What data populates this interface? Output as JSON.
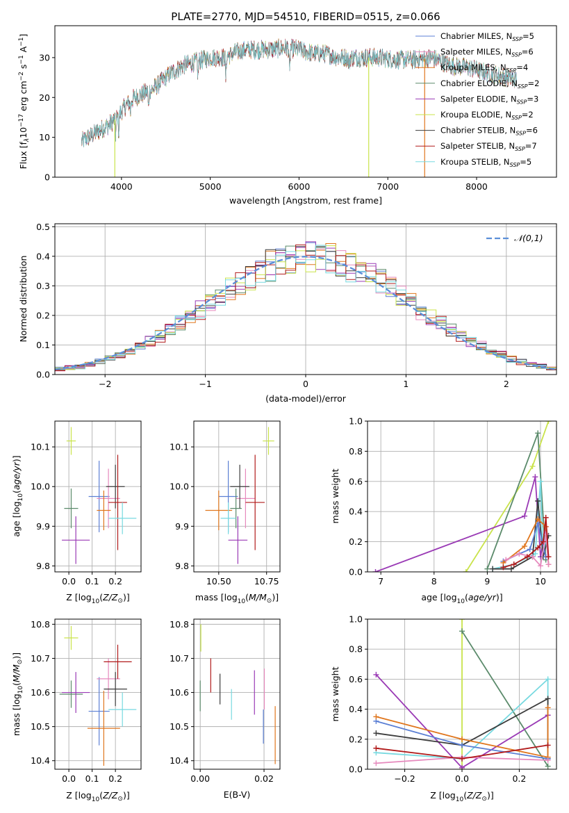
{
  "title": "PLATE=2770, MJD=54510, FIBERID=0515, z=0.066",
  "colors": {
    "Chabrier MILES": "#5b7fd4",
    "Salpeter MILES": "#e689bd",
    "Kroupa MILES": "#e0761d",
    "Chabrier ELODIE": "#5a8a6a",
    "Salpeter ELODIE": "#9a3ab5",
    "Kroupa ELODIE": "#c9e34a",
    "Chabrier STELIB": "#3c3c3c",
    "Salpeter STELIB": "#b11a1a",
    "Kroupa STELIB": "#77d9e0",
    "normal": "#5b8fd8",
    "grid": "#b0b0b0"
  },
  "chart_data": [
    {
      "id": "spectrum",
      "type": "line",
      "title": "PLATE=2770, MJD=54510, FIBERID=0515, z=0.066",
      "xlabel": "wavelength [Angstrom, rest frame]",
      "ylabel": "Flux [f_λ 10^-17 erg cm^-2 s^-1 A^-1]",
      "xlim": [
        3250,
        8900
      ],
      "ylim": [
        0,
        38
      ],
      "xticks": [
        4000,
        5000,
        6000,
        7000,
        8000
      ],
      "yticks": [
        0,
        10,
        20,
        30
      ],
      "grid": false,
      "legend": "top-right",
      "legend_entries": [
        {
          "model": "Chabrier MILES",
          "n": 5
        },
        {
          "model": "Salpeter MILES",
          "n": 6
        },
        {
          "model": "Kroupa MILES",
          "n": 4
        },
        {
          "model": "Chabrier ELODIE",
          "n": 2
        },
        {
          "model": "Salpeter ELODIE",
          "n": 3
        },
        {
          "model": "Kroupa ELODIE",
          "n": 2
        },
        {
          "model": "Chabrier STELIB",
          "n": 6
        },
        {
          "model": "Salpeter STELIB",
          "n": 7
        },
        {
          "model": "Kroupa STELIB",
          "n": 5
        }
      ],
      "continuum": [
        [
          3550,
          9
        ],
        [
          3700,
          11
        ],
        [
          3850,
          13
        ],
        [
          3950,
          15
        ],
        [
          4050,
          18
        ],
        [
          4150,
          20
        ],
        [
          4250,
          21
        ],
        [
          4350,
          22
        ],
        [
          4450,
          24
        ],
        [
          4550,
          26
        ],
        [
          4700,
          28
        ],
        [
          4850,
          29
        ],
        [
          5000,
          30
        ],
        [
          5150,
          30
        ],
        [
          5250,
          31
        ],
        [
          5400,
          32
        ],
        [
          5550,
          32
        ],
        [
          5700,
          32
        ],
        [
          5850,
          32.5
        ],
        [
          6000,
          32
        ],
        [
          6150,
          31
        ],
        [
          6300,
          31
        ],
        [
          6450,
          30
        ],
        [
          6600,
          30
        ],
        [
          6750,
          30
        ],
        [
          6900,
          30
        ],
        [
          7100,
          29.5
        ],
        [
          7300,
          29.5
        ],
        [
          7500,
          30
        ],
        [
          7700,
          28
        ],
        [
          7900,
          27.5
        ],
        [
          8150,
          26
        ],
        [
          8350,
          25
        ],
        [
          8450,
          24.5
        ]
      ],
      "absorption_dips": [
        [
          3934,
          4
        ],
        [
          3969,
          5
        ],
        [
          4101,
          3
        ],
        [
          4304,
          5
        ],
        [
          4861,
          4
        ],
        [
          5175,
          6
        ],
        [
          5894,
          7
        ],
        [
          6563,
          3
        ]
      ],
      "spikes": [
        {
          "x": 3925,
          "to": 0
        },
        {
          "x": 6785,
          "to": 0
        },
        {
          "x": 7415,
          "to": 0
        }
      ]
    },
    {
      "id": "residuals",
      "type": "line",
      "xlabel": "(data-model)/error",
      "ylabel": "Normed distribution",
      "xlim": [
        -2.5,
        2.5
      ],
      "ylim": [
        0,
        0.51
      ],
      "xticks": [
        -2,
        -1,
        0,
        1,
        2
      ],
      "yticks": [
        0.0,
        0.1,
        0.2,
        0.3,
        0.4,
        0.5
      ],
      "grid": true,
      "legend": "top-right",
      "normal_label": "𝒩(0,1)",
      "bin_edges_start": -2.5,
      "bin_width": 0.1
    },
    {
      "id": "age-vs-Z",
      "type": "scatter",
      "xlabel": "Z [log10(Z/Z⊙)]",
      "ylabel": "age [log10(age/yr)]",
      "xlim": [
        -0.06,
        0.31
      ],
      "ylim": [
        9.785,
        10.165
      ],
      "xticks": [
        0.0,
        0.1,
        0.2
      ],
      "yticks": [
        9.8,
        9.9,
        10.0,
        10.1
      ],
      "grid": true,
      "points": [
        {
          "model": "Chabrier MILES",
          "x": 0.13,
          "xerr": 0.045,
          "y": 9.975,
          "yerr": 0.09
        },
        {
          "model": "Salpeter MILES",
          "x": 0.17,
          "xerr": 0.05,
          "y": 9.97,
          "yerr": 0.075
        },
        {
          "model": "Kroupa MILES",
          "x": 0.15,
          "xerr": 0.03,
          "y": 9.94,
          "yerr": 0.05
        },
        {
          "model": "Chabrier ELODIE",
          "x": 0.01,
          "xerr": 0.03,
          "y": 9.945,
          "yerr": 0.05
        },
        {
          "model": "Salpeter ELODIE",
          "x": 0.03,
          "xerr": 0.06,
          "y": 9.865,
          "yerr": 0.06
        },
        {
          "model": "Kroupa ELODIE",
          "x": 0.01,
          "xerr": 0.02,
          "y": 10.115,
          "yerr": 0.035
        },
        {
          "model": "Chabrier STELIB",
          "x": 0.2,
          "xerr": 0.04,
          "y": 10.0,
          "yerr": 0.055
        },
        {
          "model": "Salpeter STELIB",
          "x": 0.21,
          "xerr": 0.04,
          "y": 9.96,
          "yerr": 0.12
        },
        {
          "model": "Kroupa STELIB",
          "x": 0.23,
          "xerr": 0.06,
          "y": 9.92,
          "yerr": 0.04
        }
      ]
    },
    {
      "id": "age-vs-mass",
      "type": "scatter",
      "xlabel": "mass [log10(M/M⊙)]",
      "xlim": [
        10.37,
        10.82
      ],
      "ylim": [
        9.785,
        10.165
      ],
      "xticks": [
        10.5,
        10.75
      ],
      "yticks": [
        9.8,
        9.9,
        10.0,
        10.1
      ],
      "grid": true,
      "points": [
        {
          "model": "Chabrier MILES",
          "x": 10.55,
          "xerr": 0.05,
          "y": 9.975,
          "yerr": 0.09
        },
        {
          "model": "Salpeter MILES",
          "x": 10.64,
          "xerr": 0.05,
          "y": 9.97,
          "yerr": 0.075
        },
        {
          "model": "Kroupa MILES",
          "x": 10.5,
          "xerr": 0.07,
          "y": 9.94,
          "yerr": 0.05
        },
        {
          "model": "Chabrier ELODIE",
          "x": 10.59,
          "xerr": 0.03,
          "y": 9.945,
          "yerr": 0.05
        },
        {
          "model": "Salpeter ELODIE",
          "x": 10.6,
          "xerr": 0.05,
          "y": 9.865,
          "yerr": 0.06
        },
        {
          "model": "Kroupa ELODIE",
          "x": 10.76,
          "xerr": 0.03,
          "y": 10.115,
          "yerr": 0.035
        },
        {
          "model": "Chabrier STELIB",
          "x": 10.61,
          "xerr": 0.05,
          "y": 10.0,
          "yerr": 0.055
        },
        {
          "model": "Salpeter STELIB",
          "x": 10.69,
          "xerr": 0.05,
          "y": 9.96,
          "yerr": 0.12
        },
        {
          "model": "Kroupa STELIB",
          "x": 10.55,
          "xerr": 0.04,
          "y": 9.92,
          "yerr": 0.04
        }
      ]
    },
    {
      "id": "mass-vs-Z",
      "type": "scatter",
      "xlabel": "Z [log10(Z/Z⊙)]",
      "ylabel": "mass [log10(M/M⊙)]",
      "xlim": [
        -0.06,
        0.31
      ],
      "ylim": [
        10.375,
        10.815
      ],
      "xticks": [
        0.0,
        0.1,
        0.2
      ],
      "yticks": [
        10.4,
        10.5,
        10.6,
        10.7,
        10.8
      ],
      "grid": true,
      "points": [
        {
          "model": "Chabrier MILES",
          "x": 0.13,
          "xerr": 0.045,
          "y": 10.545,
          "yerr": 0.1
        },
        {
          "model": "Salpeter MILES",
          "x": 0.17,
          "xerr": 0.05,
          "y": 10.64,
          "yerr": 0.06
        },
        {
          "model": "Kroupa MILES",
          "x": 0.15,
          "xerr": 0.07,
          "y": 10.495,
          "yerr": 0.11
        },
        {
          "model": "Chabrier ELODIE",
          "x": 0.01,
          "xerr": 0.05,
          "y": 10.595,
          "yerr": 0.04
        },
        {
          "model": "Salpeter ELODIE",
          "x": 0.03,
          "xerr": 0.06,
          "y": 10.6,
          "yerr": 0.06
        },
        {
          "model": "Kroupa ELODIE",
          "x": 0.01,
          "xerr": 0.03,
          "y": 10.76,
          "yerr": 0.035
        },
        {
          "model": "Chabrier STELIB",
          "x": 0.2,
          "xerr": 0.05,
          "y": 10.61,
          "yerr": 0.05
        },
        {
          "model": "Salpeter STELIB",
          "x": 0.21,
          "xerr": 0.06,
          "y": 10.69,
          "yerr": 0.05
        },
        {
          "model": "Kroupa STELIB",
          "x": 0.23,
          "xerr": 0.06,
          "y": 10.55,
          "yerr": 0.05
        }
      ]
    },
    {
      "id": "mass-vs-ebv",
      "type": "scatter",
      "xlabel": "E(B-V)",
      "xlim": [
        -0.002,
        0.025
      ],
      "ylim": [
        10.375,
        10.815
      ],
      "xticks": [
        0.0,
        0.02
      ],
      "yticks": [
        10.4,
        10.5,
        10.6,
        10.7,
        10.8
      ],
      "grid": true,
      "points": [
        {
          "model": "Chabrier MILES",
          "x": 0.0198,
          "y": 10.5,
          "yerr": 0.05
        },
        {
          "model": "Salpeter MILES",
          "x": 0.0201,
          "y": 10.61,
          "yerr": 0.06
        },
        {
          "model": "Kroupa MILES",
          "x": 0.0235,
          "y": 10.475,
          "yerr": 0.085
        },
        {
          "model": "Chabrier ELODIE",
          "x": 0.0,
          "y": 10.59,
          "yerr": 0.045
        },
        {
          "model": "Salpeter ELODIE",
          "x": 0.017,
          "y": 10.6,
          "yerr": 0.065
        },
        {
          "model": "Kroupa ELODIE",
          "x": 0.0002,
          "y": 10.76,
          "yerr": 0.04
        },
        {
          "model": "Chabrier STELIB",
          "x": 0.0062,
          "y": 10.61,
          "yerr": 0.045
        },
        {
          "model": "Salpeter STELIB",
          "x": 0.0033,
          "y": 10.65,
          "yerr": 0.05
        },
        {
          "model": "Kroupa STELIB",
          "x": 0.0098,
          "y": 10.565,
          "yerr": 0.045
        }
      ]
    },
    {
      "id": "weight-vs-age",
      "type": "line",
      "xlabel": "age [log10(age/yr)]",
      "ylabel": "mass weight",
      "xlim": [
        6.75,
        10.3
      ],
      "ylim": [
        0,
        1.0
      ],
      "xticks": [
        7,
        8,
        9,
        10
      ],
      "yticks": [
        0.0,
        0.2,
        0.4,
        0.6,
        0.8,
        1.0
      ],
      "grid": true,
      "series": [
        {
          "model": "Kroupa ELODIE",
          "points": [
            [
              8.6,
              0.0
            ],
            [
              9.85,
              0.7
            ],
            [
              10.15,
              1.0
            ]
          ]
        },
        {
          "model": "Salpeter ELODIE",
          "points": [
            [
              6.9,
              0.0
            ],
            [
              9.7,
              0.37
            ],
            [
              9.9,
              0.63
            ],
            [
              10.0,
              0.1
            ],
            [
              10.1,
              0.3
            ]
          ]
        },
        {
          "model": "Chabrier ELODIE",
          "points": [
            [
              9.0,
              0.02
            ],
            [
              9.95,
              0.92
            ],
            [
              10.1,
              0.08
            ]
          ]
        },
        {
          "model": "Kroupa STELIB",
          "points": [
            [
              9.1,
              0.02
            ],
            [
              9.5,
              0.05
            ],
            [
              9.9,
              0.12
            ],
            [
              10.0,
              0.6
            ],
            [
              10.05,
              0.1
            ],
            [
              10.1,
              0.2
            ],
            [
              10.15,
              0.1
            ]
          ]
        },
        {
          "model": "Chabrier STELIB",
          "points": [
            [
              9.1,
              0.02
            ],
            [
              9.45,
              0.02
            ],
            [
              9.85,
              0.1
            ],
            [
              9.95,
              0.47
            ],
            [
              10.05,
              0.1
            ],
            [
              10.15,
              0.24
            ]
          ]
        },
        {
          "model": "Chabrier MILES",
          "points": [
            [
              9.3,
              0.07
            ],
            [
              9.6,
              0.12
            ],
            [
              9.8,
              0.15
            ],
            [
              9.95,
              0.32
            ],
            [
              10.1,
              0.1
            ]
          ]
        },
        {
          "model": "Kroupa MILES",
          "points": [
            [
              9.3,
              0.06
            ],
            [
              9.7,
              0.17
            ],
            [
              9.95,
              0.35
            ],
            [
              10.1,
              0.3
            ],
            [
              10.15,
              0.05
            ]
          ]
        },
        {
          "model": "Salpeter MILES",
          "points": [
            [
              9.35,
              0.08
            ],
            [
              9.6,
              0.12
            ],
            [
              9.85,
              0.1
            ],
            [
              10.0,
              0.04
            ],
            [
              10.1,
              0.25
            ],
            [
              10.15,
              0.05
            ]
          ]
        },
        {
          "model": "Salpeter STELIB",
          "points": [
            [
              9.3,
              0.03
            ],
            [
              9.5,
              0.05
            ],
            [
              9.75,
              0.1
            ],
            [
              9.95,
              0.16
            ],
            [
              10.05,
              0.2
            ],
            [
              10.1,
              0.36
            ],
            [
              10.15,
              0.1
            ]
          ]
        }
      ]
    },
    {
      "id": "weight-vs-Z",
      "type": "line",
      "xlabel": "Z [log10(Z/Z⊙)]",
      "ylabel": "mass weight",
      "xlim": [
        -0.33,
        0.33
      ],
      "ylim": [
        0,
        1.0
      ],
      "xticks": [
        -0.2,
        0.0,
        0.2
      ],
      "yticks": [
        0.0,
        0.2,
        0.4,
        0.6,
        0.8,
        1.0
      ],
      "grid": true,
      "series": [
        {
          "model": "Kroupa ELODIE",
          "points": [
            [
              0.0,
              1.0
            ],
            [
              0.0,
              0.0
            ]
          ]
        },
        {
          "model": "Chabrier ELODIE",
          "points": [
            [
              0.0,
              0.92
            ],
            [
              0.3,
              0.02
            ]
          ]
        },
        {
          "model": "Salpeter ELODIE",
          "points": [
            [
              -0.3,
              0.63
            ],
            [
              0.0,
              0.01
            ],
            [
              0.3,
              0.36
            ]
          ]
        },
        {
          "model": "Kroupa STELIB",
          "points": [
            [
              -0.3,
              0.11
            ],
            [
              0.0,
              0.07
            ],
            [
              0.3,
              0.6
            ],
            [
              0.3,
              0.08
            ]
          ]
        },
        {
          "model": "Chabrier STELIB",
          "points": [
            [
              -0.3,
              0.24
            ],
            [
              0.0,
              0.16
            ],
            [
              0.3,
              0.47
            ],
            [
              0.3,
              0.07
            ]
          ]
        },
        {
          "model": "Chabrier MILES",
          "points": [
            [
              -0.3,
              0.32
            ],
            [
              0.0,
              0.16
            ],
            [
              0.3,
              0.07
            ]
          ]
        },
        {
          "model": "Kroupa MILES",
          "points": [
            [
              -0.3,
              0.35
            ],
            [
              0.0,
              0.2
            ],
            [
              0.3,
              0.08
            ],
            [
              0.3,
              0.41
            ]
          ]
        },
        {
          "model": "Salpeter MILES",
          "points": [
            [
              -0.3,
              0.04
            ],
            [
              0.0,
              0.08
            ],
            [
              0.3,
              0.06
            ]
          ]
        },
        {
          "model": "Salpeter STELIB",
          "points": [
            [
              -0.3,
              0.14
            ],
            [
              0.0,
              0.07
            ],
            [
              0.3,
              0.16
            ]
          ]
        }
      ]
    }
  ]
}
